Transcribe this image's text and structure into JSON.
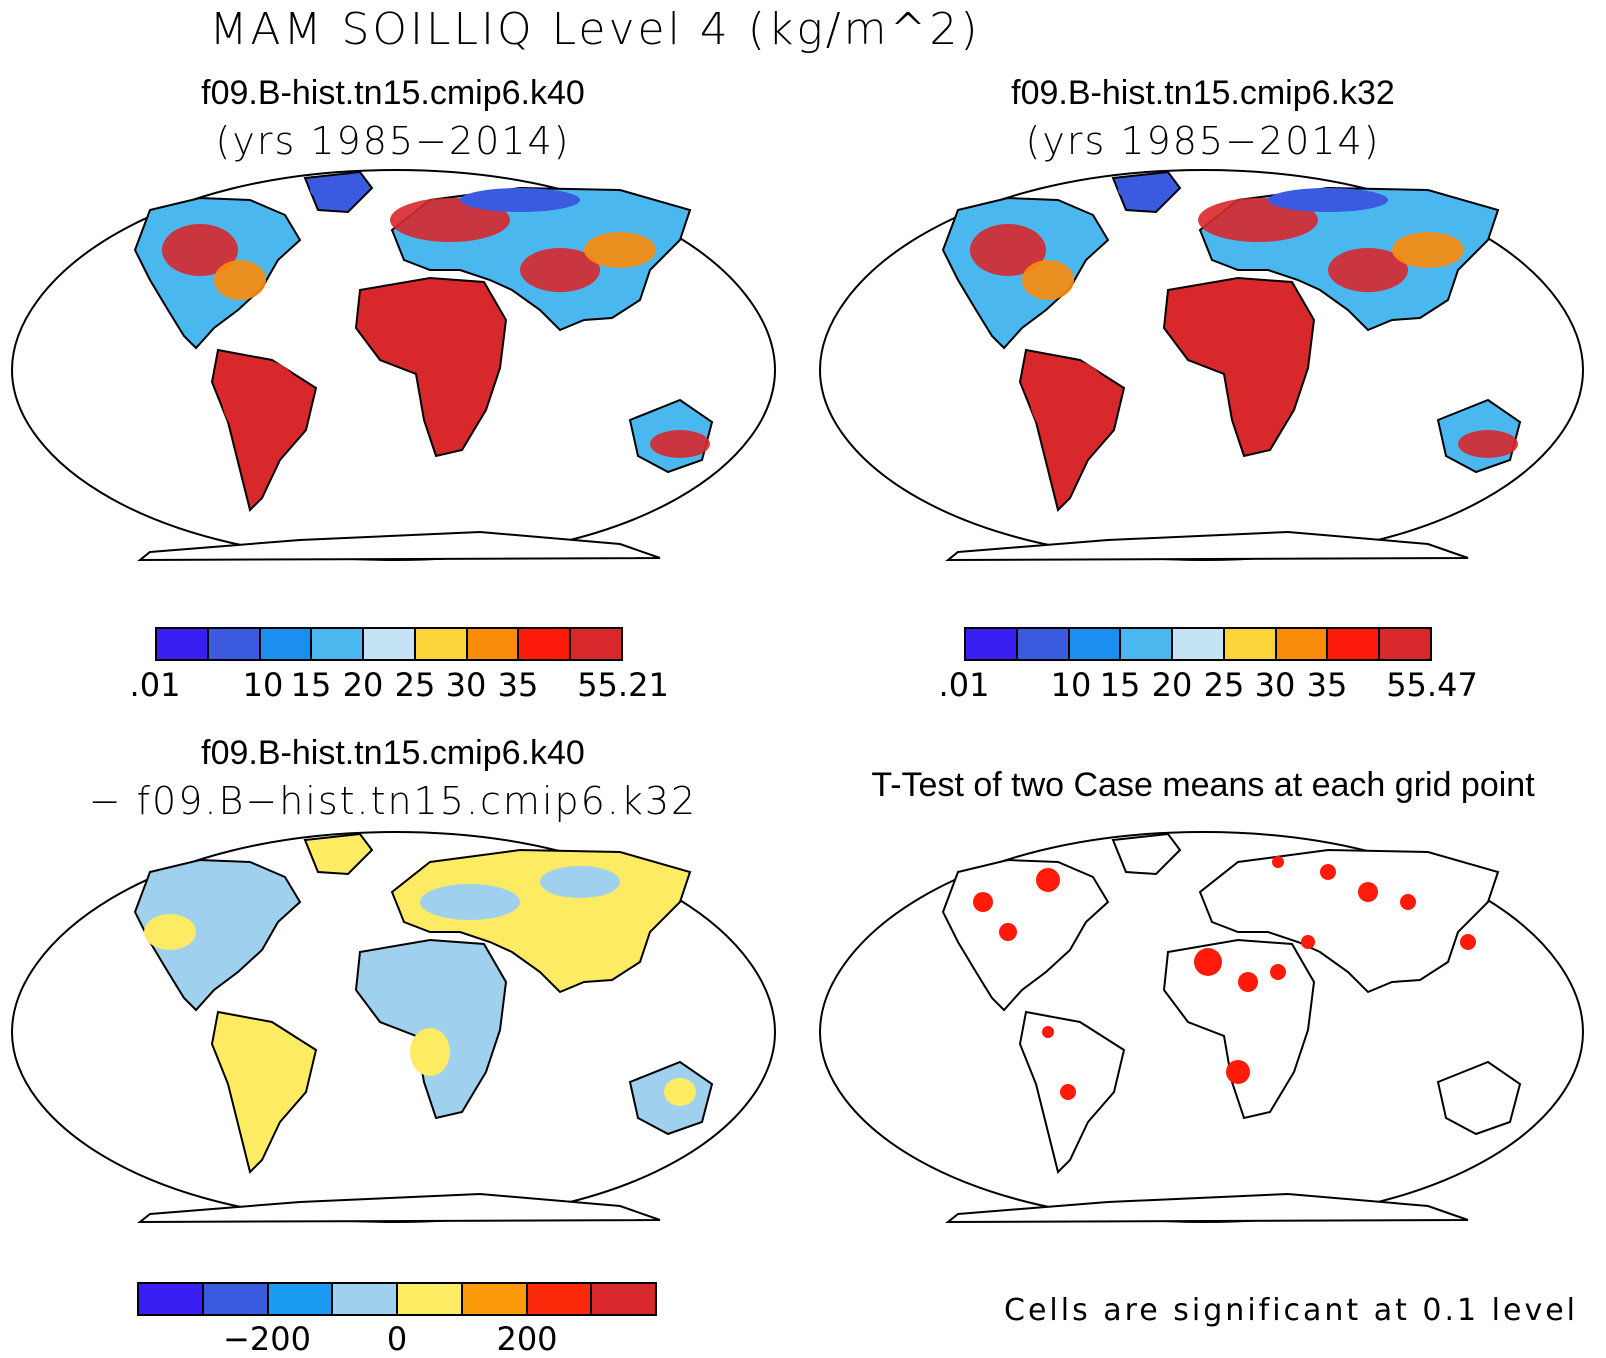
{
  "title": "MAM SOILLIQ Level 4 (kg/m^2)",
  "panels": {
    "top_left": {
      "case": "f09.B-hist.tn15.cmip6.k40",
      "years": "(yrs 1985−2014)"
    },
    "top_right": {
      "case": "f09.B-hist.tn15.cmip6.k32",
      "years": "(yrs 1985−2014)"
    },
    "bottom_left": {
      "case": "f09.B-hist.tn15.cmip6.k40",
      "case2": "− f09.B−hist.tn15.cmip6.k32"
    },
    "bottom_right": {
      "title": "T-Test of two Case means at each grid point",
      "note": "Cells are significant at 0.1 level"
    }
  },
  "colorbars": {
    "top_left": {
      "colors": [
        "#3a1ff5",
        "#3a5be0",
        "#1a8ff0",
        "#4ab8ee",
        "#c4e4f6",
        "#fbd43a",
        "#fb8c0a",
        "#fb1a0a",
        "#d8282c"
      ],
      "labels": [
        ".01",
        "10",
        "15",
        "20",
        "25",
        "30",
        "35",
        "55.21"
      ]
    },
    "top_right": {
      "colors": [
        "#3a1ff5",
        "#3a5be0",
        "#1a8ff0",
        "#4ab8ee",
        "#c4e4f6",
        "#fbd43a",
        "#fb8c0a",
        "#fb1a0a",
        "#d8282c"
      ],
      "labels": [
        ".01",
        "10",
        "15",
        "20",
        "25",
        "30",
        "35",
        "55.47"
      ]
    },
    "bottom_left": {
      "colors": [
        "#3a1ff5",
        "#3a5be0",
        "#1a9bf0",
        "#9fd0ee",
        "#fdeb64",
        "#fb9a0a",
        "#fb2a0a",
        "#d8282c"
      ],
      "labels": [
        "−200",
        "0",
        "200"
      ]
    }
  },
  "map_colors": {
    "wet": "#d8282c",
    "mid": "#fb8c0a",
    "dry": "#4ab8ee",
    "cold": "#3a5be0",
    "diff_pos": "#fdeb64",
    "diff_neg": "#9fd0ee",
    "sig": "#ff1a0a"
  }
}
